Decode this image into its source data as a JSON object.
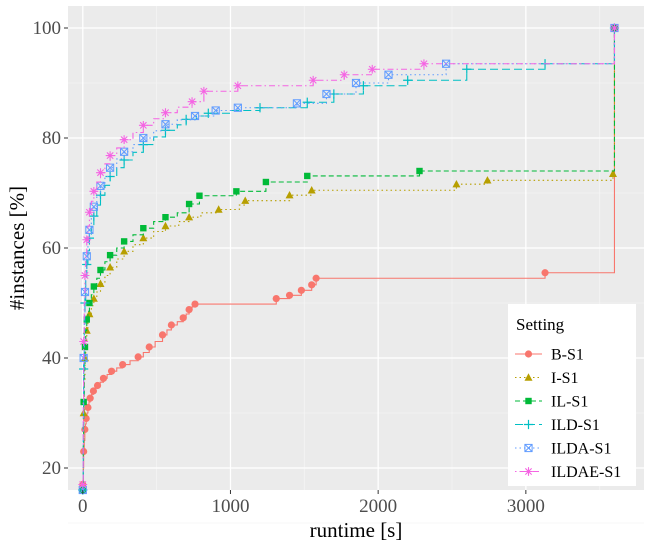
{
  "chart_data": {
    "type": "line",
    "title": "",
    "xlabel": "runtime [s]",
    "ylabel": "#instances [%]",
    "xlim": [
      -100,
      3800
    ],
    "ylim": [
      16,
      104
    ],
    "x_ticks": [
      0,
      1000,
      2000,
      3000
    ],
    "y_ticks": [
      20,
      40,
      60,
      80,
      100
    ],
    "x_tick_labels": [
      "0",
      "1000",
      "2000",
      "3000"
    ],
    "y_tick_labels": [
      "20",
      "40",
      "60",
      "80",
      "100"
    ],
    "grid": true,
    "legend_title": "Setting",
    "legend_position": "bottom-right",
    "series": [
      {
        "name": "B-S1",
        "color": "#F8766D",
        "marker": "circle",
        "dash": "solid",
        "x": [
          0,
          3,
          6,
          10,
          14,
          18,
          23,
          29,
          35,
          42,
          50,
          60,
          72,
          85,
          100,
          118,
          140,
          165,
          195,
          230,
          270,
          320,
          375,
          410,
          450,
          490,
          540,
          570,
          600,
          640,
          680,
          700,
          720,
          740,
          760,
          1310,
          1400,
          1480,
          1550,
          1580,
          3130,
          3600,
          3600
        ],
        "y": [
          17,
          20,
          23,
          25,
          27,
          28,
          29,
          30,
          31,
          32,
          32.7,
          33.4,
          34,
          34.5,
          35,
          35.6,
          36.3,
          37,
          37.6,
          38.2,
          38.8,
          39.5,
          40.2,
          41,
          42,
          43,
          44.2,
          45.1,
          46,
          46.6,
          47.3,
          48,
          48.8,
          49.3,
          49.8,
          50.8,
          51.4,
          52.3,
          53.3,
          54.5,
          55.5,
          55.5,
          100
        ],
        "markers_x": [
          0,
          6,
          14,
          23,
          35,
          50,
          72,
          100,
          140,
          195,
          270,
          375,
          450,
          540,
          600,
          680,
          720,
          760,
          1310,
          1400,
          1480,
          1550,
          1580,
          3130,
          3600
        ],
        "markers_y": [
          17,
          23,
          27,
          29,
          31,
          32.7,
          34,
          35,
          36.3,
          37.6,
          38.8,
          40.2,
          42,
          44.2,
          46,
          47.3,
          48.8,
          49.8,
          50.8,
          51.4,
          52.3,
          53.3,
          54.5,
          55.5,
          100
        ]
      },
      {
        "name": "I-S1",
        "color": "#B79F00",
        "marker": "triangle",
        "dash": "dotted",
        "x": [
          0,
          3,
          6,
          10,
          15,
          20,
          27,
          35,
          45,
          58,
          75,
          95,
          120,
          150,
          185,
          230,
          280,
          340,
          410,
          480,
          560,
          650,
          720,
          800,
          920,
          1060,
          1100,
          1400,
          1550,
          2530,
          2740,
          3590,
          3600
        ],
        "y": [
          16,
          22,
          30,
          36,
          40,
          43,
          45,
          46.5,
          48,
          49.5,
          50.8,
          52,
          53.5,
          55,
          56.5,
          58,
          59.4,
          60.6,
          61.8,
          63,
          64,
          64.8,
          65.6,
          66.4,
          67,
          67.8,
          68.6,
          69.6,
          70.5,
          71.6,
          72.3,
          73.5,
          100
        ],
        "markers_x": [
          0,
          6,
          15,
          27,
          45,
          75,
          120,
          185,
          280,
          410,
          560,
          720,
          920,
          1100,
          1400,
          1550,
          2530,
          2740,
          3590,
          3600
        ],
        "markers_y": [
          16,
          30,
          40,
          45,
          48,
          50.8,
          53.5,
          56.5,
          59.4,
          61.8,
          64,
          65.6,
          67,
          68.6,
          69.6,
          70.5,
          71.6,
          72.3,
          73.5,
          100
        ]
      },
      {
        "name": "IL-S1",
        "color": "#00BA38",
        "marker": "square",
        "dash": "dashed",
        "x": [
          0,
          3,
          6,
          10,
          15,
          20,
          27,
          35,
          45,
          58,
          75,
          95,
          120,
          150,
          185,
          230,
          280,
          340,
          410,
          480,
          560,
          640,
          720,
          790,
          1040,
          1240,
          1520,
          2280,
          3600,
          3600
        ],
        "y": [
          16,
          24,
          32,
          38,
          42,
          45,
          47,
          48.5,
          50,
          51.5,
          53,
          54.5,
          56,
          57.5,
          58.7,
          60,
          61.2,
          62.4,
          63.6,
          64.8,
          65.6,
          66.4,
          68,
          69.5,
          70.3,
          72,
          73.1,
          74,
          74,
          100
        ],
        "markers_x": [
          0,
          6,
          15,
          27,
          45,
          75,
          120,
          185,
          280,
          410,
          560,
          720,
          790,
          1040,
          1240,
          1520,
          2280,
          3600
        ],
        "markers_y": [
          16,
          32,
          42,
          47,
          50,
          53,
          56,
          58.7,
          61.2,
          63.6,
          65.6,
          68,
          69.5,
          70.3,
          72,
          73.1,
          74,
          100
        ]
      },
      {
        "name": "ILD-S1",
        "color": "#00BFC4",
        "marker": "plus",
        "dash": "longdash",
        "x": [
          0,
          3,
          6,
          10,
          15,
          20,
          27,
          35,
          45,
          58,
          75,
          95,
          120,
          150,
          185,
          230,
          280,
          340,
          410,
          480,
          560,
          640,
          700,
          770,
          850,
          1000,
          1200,
          1520,
          1700,
          1900,
          2200,
          2600,
          3130,
          3600,
          3600
        ],
        "y": [
          16,
          28,
          38,
          45,
          50,
          54,
          57,
          59.5,
          61.8,
          63.8,
          65.8,
          67.8,
          69.6,
          71.4,
          73,
          74.6,
          76,
          77.4,
          78.8,
          80.2,
          81.4,
          82.4,
          83.4,
          84,
          84.5,
          85,
          85.5,
          86.5,
          88,
          89.5,
          90.5,
          92.5,
          93.5,
          93.5,
          100
        ],
        "markers_x": [
          0,
          6,
          15,
          27,
          45,
          75,
          120,
          185,
          280,
          410,
          560,
          700,
          850,
          1200,
          1520,
          1700,
          1900,
          2200,
          2600,
          3130,
          3600
        ],
        "markers_y": [
          16,
          38,
          50,
          57,
          61.8,
          65.8,
          69.6,
          73,
          76,
          78.8,
          81.4,
          83.4,
          84.5,
          85.5,
          86.5,
          88,
          89.5,
          90.5,
          92.5,
          93.5,
          100
        ]
      },
      {
        "name": "ILDA-S1",
        "color": "#619CFF",
        "marker": "square-x",
        "dash": "dotted",
        "x": [
          0,
          3,
          6,
          10,
          15,
          20,
          27,
          35,
          45,
          58,
          75,
          95,
          120,
          150,
          185,
          230,
          280,
          340,
          410,
          480,
          560,
          640,
          760,
          900,
          1050,
          1450,
          1650,
          1850,
          2070,
          2460,
          3600,
          3600
        ],
        "y": [
          16,
          30,
          40,
          47,
          52,
          55.5,
          58.5,
          61,
          63.3,
          65.5,
          67.5,
          69.5,
          71.3,
          73,
          74.6,
          76.2,
          77.5,
          78.8,
          80,
          81.3,
          82.5,
          83.3,
          84,
          85,
          85.5,
          86.3,
          88,
          90,
          91.5,
          93.5,
          93.5,
          100
        ],
        "markers_x": [
          0,
          6,
          15,
          27,
          45,
          75,
          120,
          185,
          280,
          410,
          560,
          760,
          900,
          1050,
          1450,
          1650,
          1850,
          2070,
          2460,
          3600
        ],
        "markers_y": [
          16,
          40,
          52,
          58.5,
          63.3,
          67.5,
          71.3,
          74.6,
          77.5,
          80,
          82.5,
          84,
          85,
          85.5,
          86.3,
          88,
          90,
          91.5,
          93.5,
          100
        ]
      },
      {
        "name": "ILDAE-S1",
        "color": "#F564E3",
        "marker": "star",
        "dash": "dotdash",
        "x": [
          0,
          3,
          6,
          10,
          15,
          20,
          27,
          35,
          45,
          58,
          75,
          95,
          120,
          150,
          185,
          230,
          280,
          340,
          410,
          480,
          560,
          640,
          740,
          820,
          1050,
          1560,
          1770,
          1960,
          2310,
          3600,
          3600
        ],
        "y": [
          17,
          32,
          43,
          50,
          55,
          58.5,
          61.5,
          64,
          66.5,
          68.5,
          70.3,
          72,
          73.7,
          75.3,
          76.8,
          78.2,
          79.7,
          81,
          82.3,
          83.5,
          84.6,
          85.6,
          86.6,
          88.5,
          89.5,
          90.5,
          91.5,
          92.5,
          93.5,
          93.5,
          100
        ],
        "markers_x": [
          0,
          6,
          15,
          27,
          45,
          75,
          120,
          185,
          280,
          410,
          560,
          740,
          820,
          1050,
          1560,
          1770,
          1960,
          2310,
          3600
        ],
        "markers_y": [
          17,
          43,
          55,
          61.5,
          66.5,
          70.3,
          73.7,
          76.8,
          79.7,
          82.3,
          84.6,
          86.6,
          88.5,
          89.5,
          90.5,
          91.5,
          92.5,
          93.5,
          100
        ]
      }
    ]
  }
}
